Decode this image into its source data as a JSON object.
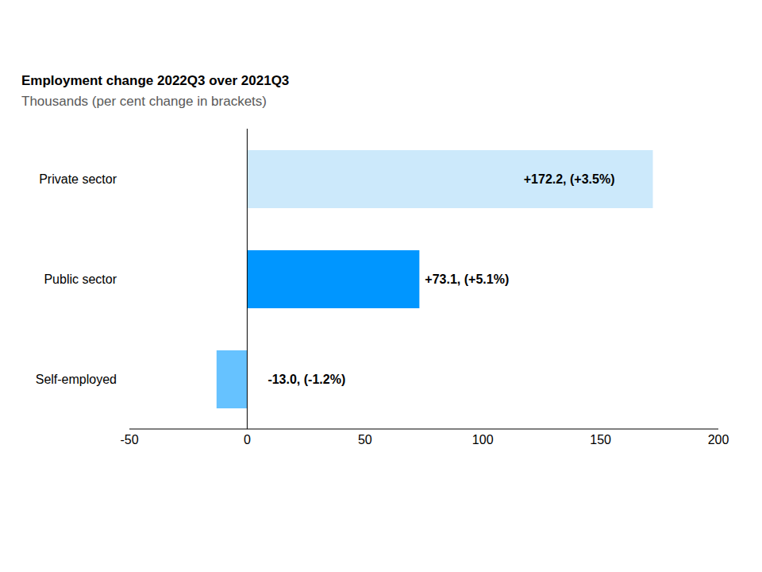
{
  "chart_data": {
    "type": "bar",
    "orientation": "horizontal",
    "title": "Employment change 2022Q3 over 2021Q3",
    "subtitle": "Thousands (per cent change in brackets)",
    "categories": [
      "Private sector",
      "Public sector",
      "Self-employed"
    ],
    "values": [
      172.2,
      73.1,
      -13.0
    ],
    "value_labels": [
      "+172.2, (+3.5%)",
      "+73.1, (+5.1%)",
      "-13.0, (-1.2%)"
    ],
    "colors": [
      "#cce9fb",
      "#0096ff",
      "#66c2ff"
    ],
    "xlim": [
      -50,
      200
    ],
    "xticks": [
      -50,
      0,
      50,
      100,
      150,
      200
    ],
    "grid": false,
    "data_labels": true
  }
}
